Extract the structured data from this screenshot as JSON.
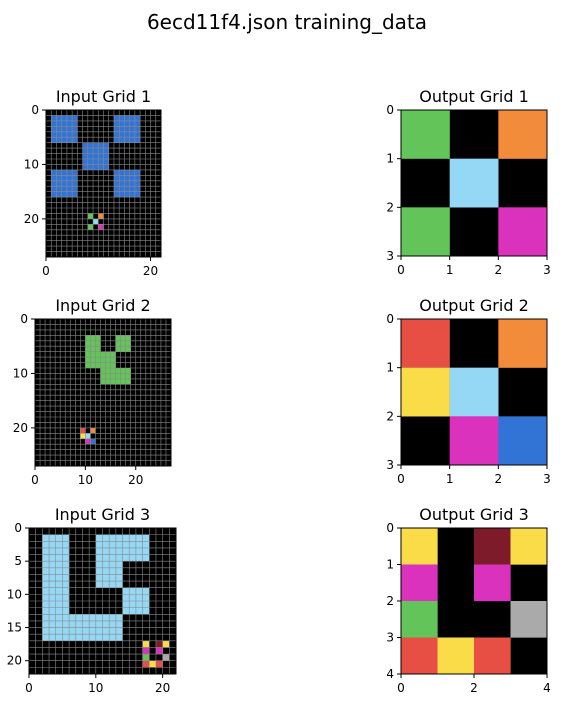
{
  "figure": {
    "title": "6ecd11f4.json training_data"
  },
  "palette": {
    "0": "#000000",
    "1": "#3174d6",
    "2": "#e84f44",
    "3": "#63c45a",
    "4": "#f9dc48",
    "5": "#aaaaaa",
    "6": "#db32bd",
    "7": "#f28b3a",
    "8": "#95d8f6",
    "9": "#7d1b2b"
  },
  "chart_data": [
    {
      "type": "heatmap",
      "title": "Input Grid 1",
      "rows": 27,
      "cols": 22,
      "xticks": [
        0,
        20
      ],
      "yticks": [
        0,
        10,
        20
      ],
      "fills": [
        {
          "r": [
            1,
            5
          ],
          "c": [
            1,
            5
          ],
          "v": 1
        },
        {
          "r": [
            1,
            5
          ],
          "c": [
            13,
            17
          ],
          "v": 1
        },
        {
          "r": [
            6,
            10
          ],
          "c": [
            7,
            11
          ],
          "v": 1
        },
        {
          "r": [
            11,
            15
          ],
          "c": [
            1,
            5
          ],
          "v": 1
        },
        {
          "r": [
            11,
            15
          ],
          "c": [
            13,
            17
          ],
          "v": 1
        }
      ],
      "patch": {
        "r": 19,
        "c": 8,
        "cells": [
          [
            3,
            0,
            7
          ],
          [
            0,
            8,
            0
          ],
          [
            3,
            0,
            6
          ]
        ]
      }
    },
    {
      "type": "heatmap",
      "title": "Output Grid 1",
      "rows": 3,
      "cols": 3,
      "xticks": [
        0,
        1,
        2,
        3
      ],
      "yticks": [
        0,
        1,
        2,
        3
      ],
      "cells": [
        [
          3,
          0,
          7
        ],
        [
          0,
          8,
          0
        ],
        [
          3,
          0,
          6
        ]
      ]
    },
    {
      "type": "heatmap",
      "title": "Input Grid 2",
      "rows": 27,
      "cols": 27,
      "xticks": [
        0,
        10,
        20
      ],
      "yticks": [
        0,
        10,
        20
      ],
      "fills": [
        {
          "r": [
            3,
            5
          ],
          "c": [
            10,
            12
          ],
          "v": 3
        },
        {
          "r": [
            3,
            5
          ],
          "c": [
            16,
            18
          ],
          "v": 3
        },
        {
          "r": [
            6,
            8
          ],
          "c": [
            10,
            15
          ],
          "v": 3
        },
        {
          "r": [
            9,
            11
          ],
          "c": [
            13,
            18
          ],
          "v": 3
        }
      ],
      "patch": {
        "r": 20,
        "c": 9,
        "cells": [
          [
            2,
            0,
            7
          ],
          [
            4,
            8,
            0
          ],
          [
            0,
            6,
            1
          ]
        ]
      }
    },
    {
      "type": "heatmap",
      "title": "Output Grid 2",
      "rows": 3,
      "cols": 3,
      "xticks": [
        0,
        1,
        2,
        3
      ],
      "yticks": [
        0,
        1,
        2,
        3
      ],
      "cells": [
        [
          2,
          0,
          7
        ],
        [
          4,
          8,
          0
        ],
        [
          0,
          6,
          1
        ]
      ]
    },
    {
      "type": "heatmap",
      "title": "Input Grid 3",
      "rows": 22,
      "cols": 22,
      "xticks": [
        0,
        10,
        20
      ],
      "yticks": [
        0,
        5,
        10,
        15,
        20
      ],
      "fills": [
        {
          "r": [
            1,
            16
          ],
          "c": [
            2,
            5
          ],
          "v": 8
        },
        {
          "r": [
            13,
            16
          ],
          "c": [
            6,
            13
          ],
          "v": 8
        },
        {
          "r": [
            1,
            4
          ],
          "c": [
            10,
            17
          ],
          "v": 8
        },
        {
          "r": [
            5,
            8
          ],
          "c": [
            10,
            13
          ],
          "v": 8
        },
        {
          "r": [
            9,
            12
          ],
          "c": [
            14,
            17
          ],
          "v": 8
        }
      ],
      "patch": {
        "r": 17,
        "c": 17,
        "cells": [
          [
            4,
            0,
            9,
            4
          ],
          [
            6,
            0,
            6,
            0
          ],
          [
            3,
            0,
            0,
            5
          ],
          [
            2,
            4,
            2,
            0
          ]
        ]
      }
    },
    {
      "type": "heatmap",
      "title": "Output Grid 3",
      "rows": 4,
      "cols": 4,
      "xticks": [
        0,
        2,
        4
      ],
      "yticks": [
        0,
        1,
        2,
        3,
        4
      ],
      "cells": [
        [
          4,
          0,
          9,
          4
        ],
        [
          6,
          0,
          6,
          0
        ],
        [
          3,
          0,
          0,
          5
        ],
        [
          2,
          4,
          2,
          0
        ]
      ]
    }
  ]
}
